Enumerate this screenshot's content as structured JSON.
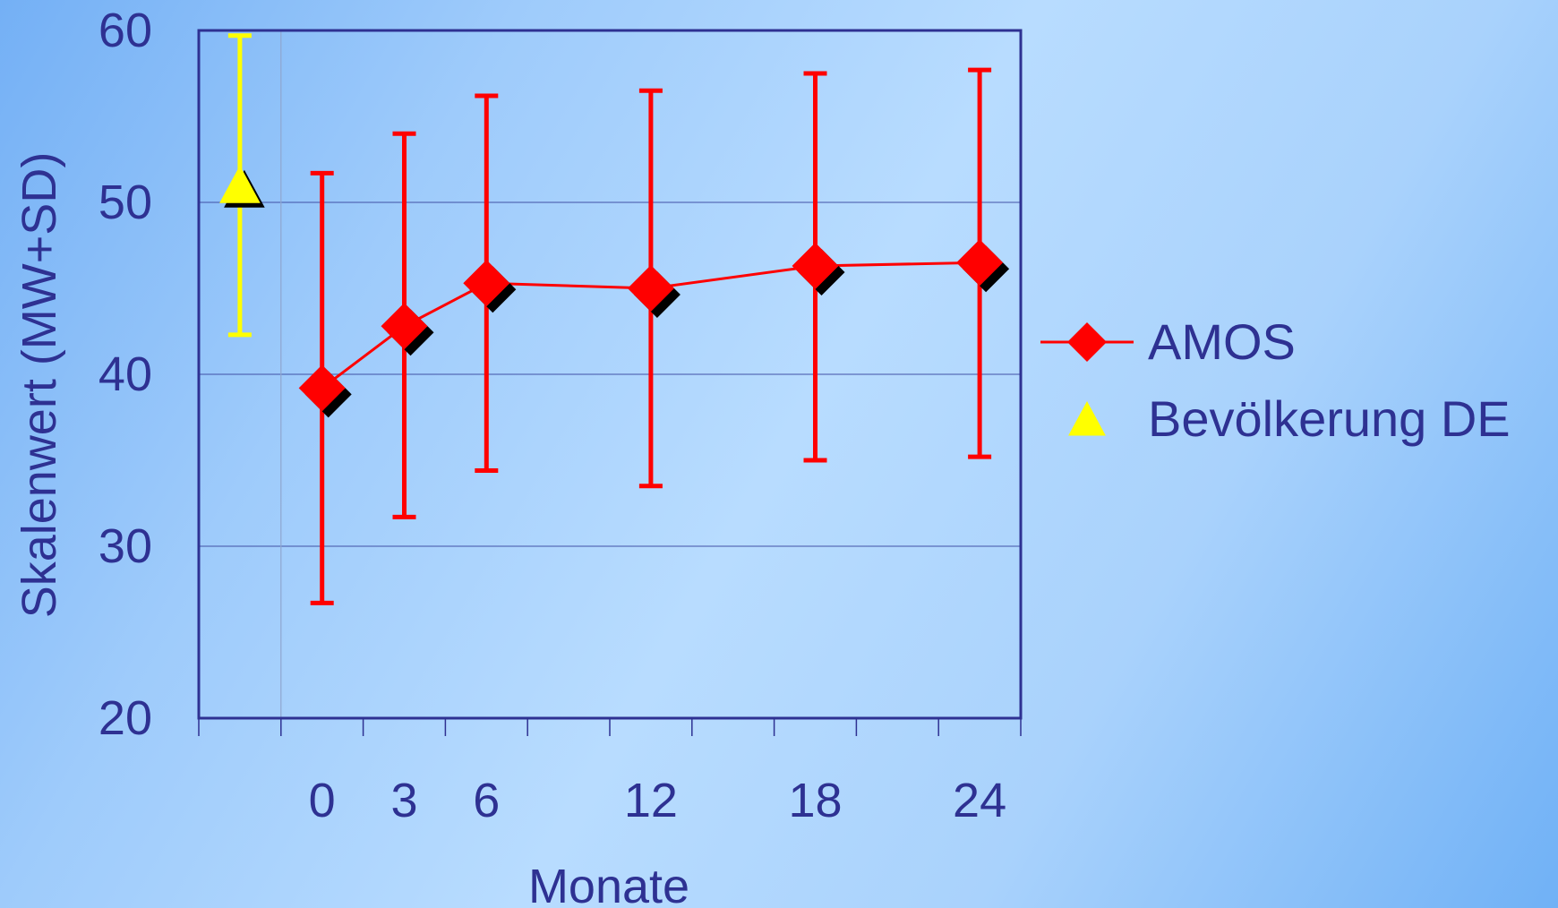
{
  "chart_data": {
    "type": "line",
    "title": "",
    "xlabel": "Monate",
    "ylabel": "Skalenwert (MW+SD)",
    "ylim": [
      20,
      60
    ],
    "yticks": [
      "20",
      "30",
      "40",
      "50",
      "60"
    ],
    "grid": true,
    "legend_position": "right",
    "categories": [
      "",
      "0",
      "3",
      "6",
      "",
      "12",
      "",
      "18",
      "",
      "24"
    ],
    "series": [
      {
        "name": "AMOS",
        "marker": "diamond",
        "color": "#ff0000",
        "line": true,
        "x": [
          "0",
          "3",
          "6",
          "12",
          "18",
          "24"
        ],
        "category_index": [
          1,
          2,
          3,
          5,
          7,
          9
        ],
        "mean": [
          39.2,
          42.8,
          45.3,
          45.0,
          46.3,
          46.5
        ],
        "error_low": [
          26.7,
          31.7,
          34.4,
          33.5,
          35.0,
          35.2
        ],
        "error_high": [
          51.7,
          54.0,
          56.2,
          56.5,
          57.5,
          57.7
        ]
      },
      {
        "name": "Bevölkerung DE",
        "marker": "triangle",
        "color": "#ffff00",
        "line": false,
        "category_index": [
          0
        ],
        "mean": [
          50.9
        ],
        "error_low": [
          42.3
        ],
        "error_high": [
          59.7
        ]
      }
    ]
  }
}
